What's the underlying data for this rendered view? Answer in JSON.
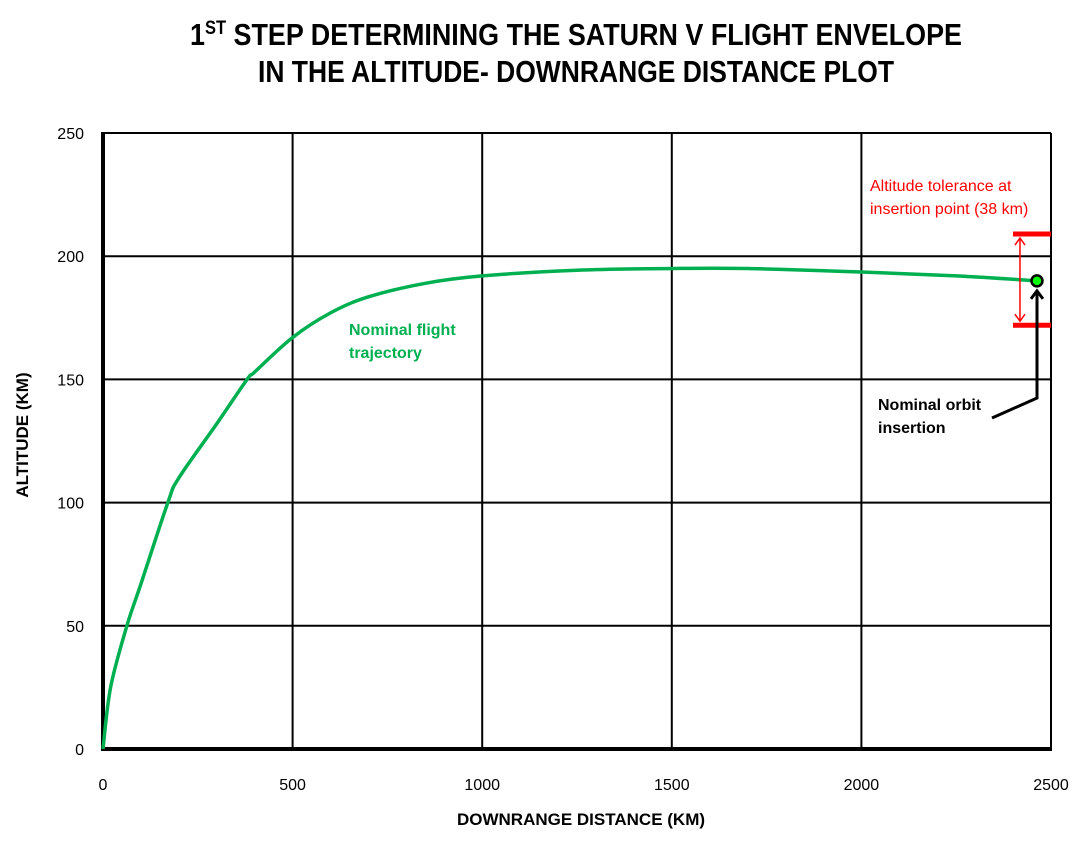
{
  "chart_data": {
    "type": "line",
    "title_line1_prefix": "1",
    "title_line1_sup": "ST",
    "title_line1_rest": " STEP DETERMINING THE SATURN V  FLIGHT  ENVELOPE",
    "title_line2": "IN THE ALTITUDE- DOWNRANGE DISTANCE PLOT",
    "xlabel": "DOWNRANGE  DISTANCE (KM)",
    "ylabel": "ALTITUDE (KM)",
    "xlim": [
      0,
      2500
    ],
    "ylim": [
      0,
      250
    ],
    "grid": true,
    "x_ticks": [
      "0",
      "500",
      "1000",
      "1500",
      "2000",
      "2500"
    ],
    "y_ticks": [
      "0",
      "50",
      "100",
      "150",
      "200",
      "250"
    ],
    "series": [
      {
        "name": "Nominal flight trajectory",
        "color": "#00b050",
        "x": [
          0,
          20,
          63,
          100,
          171,
          200,
          300,
          380,
          400,
          500,
          600,
          700,
          850,
          1000,
          1250,
          1500,
          1700,
          2000,
          2250,
          2463
        ],
        "y": [
          0,
          25,
          50,
          67,
          100,
          110,
          132,
          150,
          153,
          167,
          177,
          183.5,
          189,
          192,
          194.3,
          195,
          195,
          193.6,
          192,
          190
        ]
      }
    ],
    "insertion_point": {
      "x": 2463,
      "y": 190,
      "color": "#00ff00"
    },
    "tolerance": {
      "x": 2463,
      "upper": 209,
      "lower": 172,
      "color": "#ff0000"
    },
    "annotations": {
      "trajectory_label": [
        "Nominal flight",
        "trajectory"
      ],
      "tolerance_label": [
        "Altitude tolerance at",
        "insertion point (38 km)"
      ],
      "insertion_label": [
        "Nominal orbit",
        "insertion"
      ]
    }
  }
}
